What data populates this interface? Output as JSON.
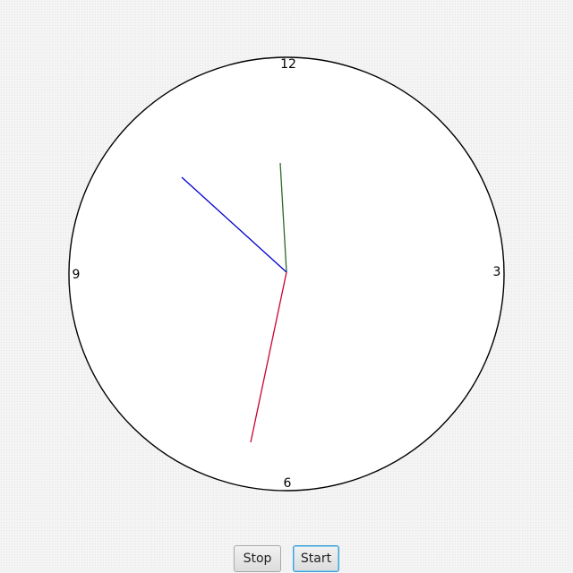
{
  "clock": {
    "numerals": {
      "n12": "12",
      "n3": "3",
      "n6": "6",
      "n9": "9"
    },
    "time": {
      "hours": 10,
      "minutes": 58,
      "seconds": 32
    },
    "colors": {
      "face": "#ffffff",
      "rim": "#000000",
      "hour_hand": "#2a6b2a",
      "minute_hand": "#0000cc",
      "second_hand": "#cc0033"
    }
  },
  "controls": {
    "stop_label": "Stop",
    "start_label": "Start"
  }
}
